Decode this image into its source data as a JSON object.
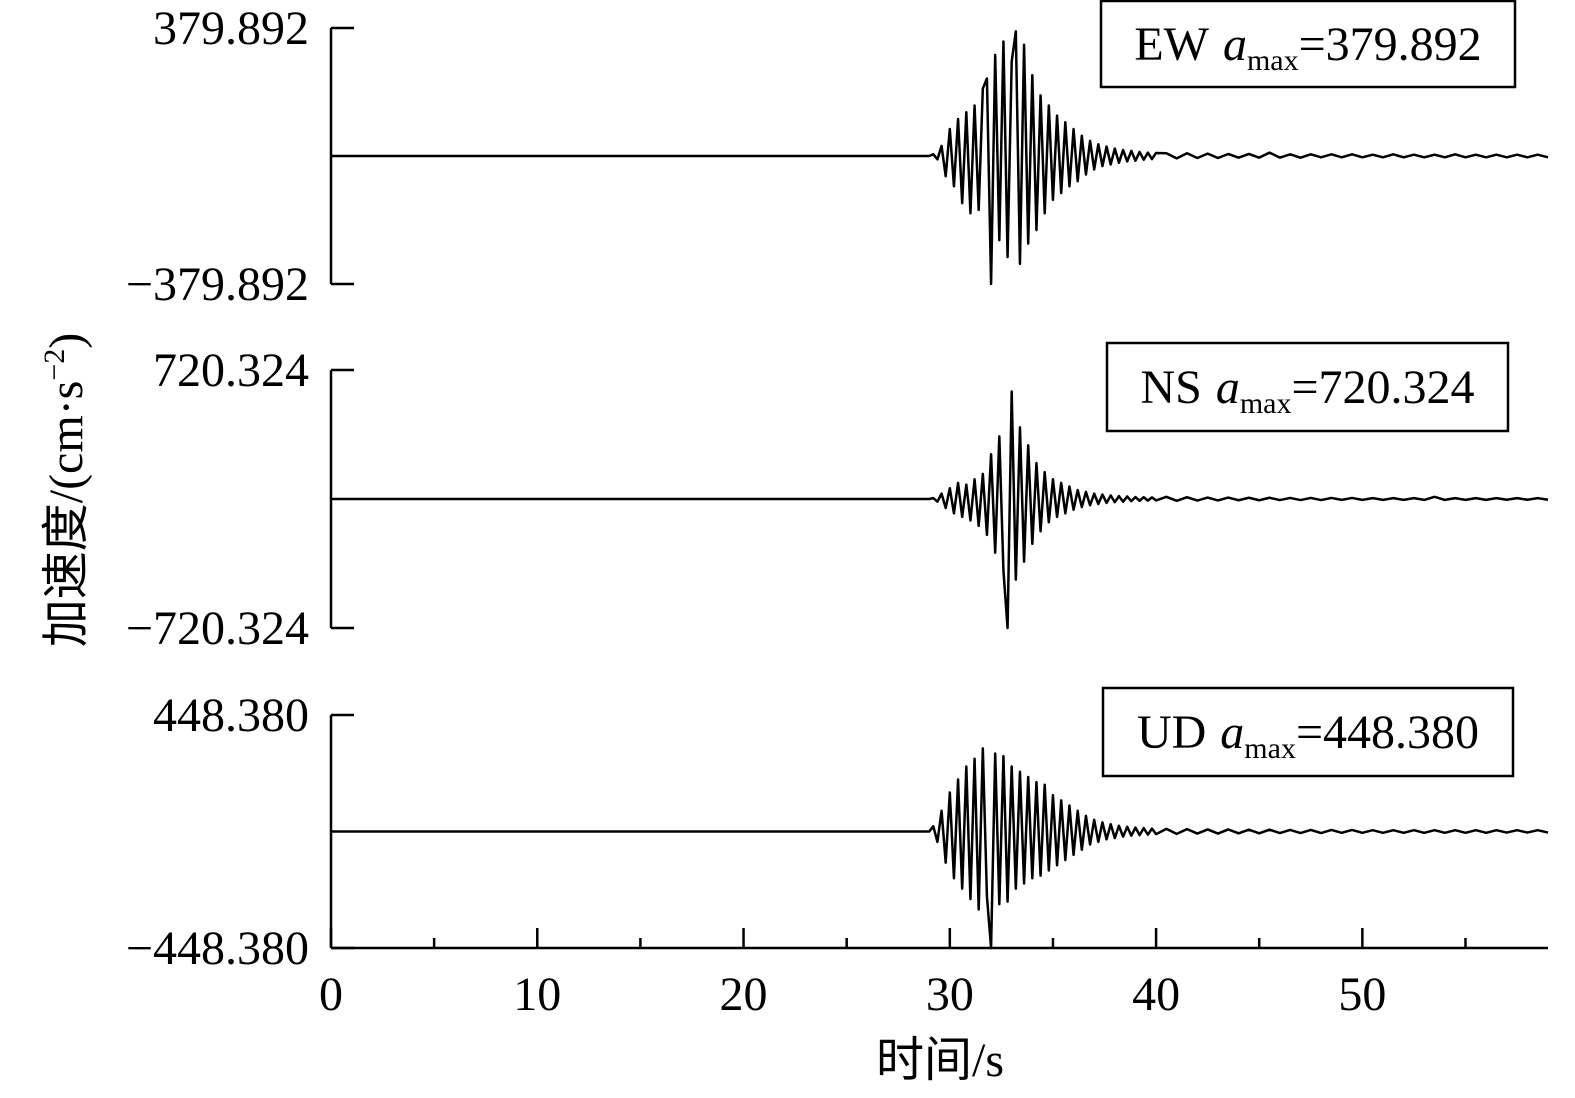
{
  "chart_data": [
    {
      "type": "line",
      "annotation_parts": [
        "EW",
        "a",
        "max",
        "=379.892"
      ],
      "x": [
        0,
        29,
        29.2,
        29.4,
        29.6,
        29.8,
        30,
        30.2,
        30.4,
        30.6,
        30.8,
        31,
        31.2,
        31.4,
        31.6,
        31.8,
        32,
        32.2,
        32.4,
        32.6,
        32.8,
        33,
        33.2,
        33.4,
        33.6,
        33.8,
        34,
        34.2,
        34.4,
        34.6,
        34.8,
        35,
        35.2,
        35.4,
        35.6,
        35.8,
        36,
        36.2,
        36.4,
        36.6,
        36.8,
        37,
        37.2,
        37.4,
        37.6,
        37.8,
        38,
        38.2,
        38.4,
        38.6,
        38.8,
        39,
        39.2,
        39.4,
        39.6,
        39.8,
        40,
        40.5,
        41,
        41.5,
        42,
        42.5,
        43,
        43.5,
        44,
        44.5,
        45,
        45.5,
        46,
        46.5,
        47,
        47.5,
        48,
        48.5,
        49,
        49.5,
        50,
        50.5,
        51,
        51.5,
        52,
        52.5,
        53,
        53.5,
        54,
        54.5,
        55,
        55.5,
        56,
        56.5,
        57,
        57.5,
        58,
        58.5,
        59
      ],
      "series": [
        {
          "color": "#000000",
          "values": [
            0,
            0,
            5,
            -10,
            30,
            -60,
            80,
            -90,
            110,
            -140,
            130,
            -170,
            150,
            -160,
            200,
            230,
            -379.892,
            300,
            -250,
            340,
            -300,
            280,
            370,
            -320,
            330,
            -260,
            240,
            -220,
            180,
            -170,
            150,
            -130,
            120,
            -110,
            100,
            -90,
            80,
            -75,
            60,
            -55,
            45,
            -40,
            35,
            -30,
            28,
            -25,
            22,
            -20,
            18,
            -16,
            15,
            -14,
            12,
            -11,
            10,
            -9,
            9,
            8,
            -7,
            8,
            -6,
            7,
            -6,
            6,
            -5,
            6,
            -5,
            10,
            -5,
            5,
            -5,
            5,
            -4,
            5,
            -4,
            5,
            -4,
            4,
            -4,
            5,
            -4,
            4,
            -4,
            4,
            -4,
            5,
            -4,
            4,
            -4,
            4,
            -4,
            4,
            -4,
            4,
            -4
          ]
        }
      ],
      "xlim": [
        0,
        59
      ],
      "ylim": [
        -379.892,
        379.892
      ],
      "yticks": [
        {
          "value": -379.892,
          "label": "−379.892"
        },
        379.892
      ]
    },
    {
      "type": "line",
      "annotation_parts": [
        "NS",
        "a",
        "max",
        "=720.324"
      ],
      "ylabel_parts": [
        "加速度/(cm·s",
        "−2",
        ")"
      ],
      "x": [
        0,
        29,
        29.2,
        29.4,
        29.6,
        29.8,
        30,
        30.2,
        30.4,
        30.6,
        30.8,
        31,
        31.2,
        31.4,
        31.6,
        31.8,
        32,
        32.2,
        32.4,
        32.6,
        32.8,
        33,
        33.2,
        33.4,
        33.6,
        33.8,
        34,
        34.2,
        34.4,
        34.6,
        34.8,
        35,
        35.2,
        35.4,
        35.6,
        35.8,
        36,
        36.2,
        36.4,
        36.6,
        36.8,
        37,
        37.2,
        37.4,
        37.6,
        37.8,
        38,
        38.2,
        38.4,
        38.6,
        38.8,
        39,
        39.2,
        39.4,
        39.6,
        39.8,
        40,
        40.5,
        41,
        41.5,
        42,
        42.5,
        43,
        43.5,
        44,
        44.5,
        45,
        45.5,
        46,
        46.5,
        47,
        47.5,
        48,
        48.5,
        49,
        49.5,
        50,
        50.5,
        51,
        51.5,
        52,
        52.5,
        53,
        53.5,
        54,
        54.5,
        55,
        55.5,
        56,
        56.5,
        57,
        57.5,
        58,
        58.5,
        59
      ],
      "series": [
        {
          "color": "#000000",
          "values": [
            0,
            0,
            5,
            -15,
            30,
            -50,
            60,
            -80,
            90,
            -100,
            80,
            -120,
            110,
            -150,
            140,
            -200,
            250,
            -300,
            350,
            -400,
            -720.324,
            600,
            -450,
            400,
            -350,
            300,
            -250,
            200,
            -180,
            150,
            -130,
            110,
            -100,
            90,
            -80,
            70,
            -60,
            50,
            -45,
            40,
            -35,
            30,
            -28,
            25,
            -22,
            20,
            -18,
            16,
            -15,
            14,
            -12,
            11,
            -10,
            10,
            -9,
            9,
            -8,
            12,
            -10,
            10,
            -9,
            8,
            -8,
            8,
            -7,
            7,
            -7,
            7,
            -6,
            6,
            -6,
            6,
            -6,
            6,
            -5,
            6,
            -5,
            5,
            -5,
            5,
            -5,
            5,
            -5,
            12,
            -5,
            5,
            -5,
            5,
            -5,
            5,
            -4,
            5,
            -4,
            5,
            -4
          ]
        }
      ],
      "xlim": [
        0,
        59
      ],
      "ylim": [
        -720.324,
        720.324
      ],
      "yticks": [
        {
          "value": -720.324,
          "label": "−720.324"
        },
        720.324
      ]
    },
    {
      "type": "line",
      "annotation_parts": [
        "UD",
        "a",
        "max",
        "=448.380"
      ],
      "xlabel": "时间/s",
      "x": [
        0,
        29,
        29.2,
        29.4,
        29.6,
        29.8,
        30,
        30.2,
        30.4,
        30.6,
        30.8,
        31,
        31.2,
        31.4,
        31.6,
        31.8,
        32,
        32.2,
        32.4,
        32.6,
        32.8,
        33,
        33.2,
        33.4,
        33.6,
        33.8,
        34,
        34.2,
        34.4,
        34.6,
        34.8,
        35,
        35.2,
        35.4,
        35.6,
        35.8,
        36,
        36.2,
        36.4,
        36.6,
        36.8,
        37,
        37.2,
        37.4,
        37.6,
        37.8,
        38,
        38.2,
        38.4,
        38.6,
        38.8,
        39,
        39.2,
        39.4,
        39.6,
        39.8,
        40,
        40.5,
        41,
        41.5,
        42,
        42.5,
        43,
        43.5,
        44,
        44.5,
        45,
        45.5,
        46,
        46.5,
        47,
        47.5,
        48,
        48.5,
        49,
        49.5,
        50,
        50.5,
        51,
        51.5,
        52,
        52.5,
        53,
        53.5,
        54,
        54.5,
        55,
        55.5,
        56,
        56.5,
        57,
        57.5,
        58,
        58.5,
        59
      ],
      "series": [
        {
          "color": "#000000",
          "values": [
            0,
            0,
            20,
            -40,
            80,
            -120,
            150,
            -180,
            200,
            -220,
            250,
            -260,
            280,
            -300,
            320,
            -250,
            -448.38,
            300,
            -280,
            290,
            -270,
            250,
            -220,
            230,
            -200,
            210,
            -180,
            190,
            -170,
            180,
            -150,
            140,
            -130,
            120,
            -110,
            100,
            -90,
            80,
            -70,
            60,
            -50,
            45,
            -40,
            35,
            -30,
            28,
            -25,
            22,
            -20,
            18,
            -16,
            15,
            -14,
            13,
            -12,
            11,
            -10,
            10,
            -9,
            9,
            -8,
            8,
            -8,
            8,
            -7,
            7,
            -7,
            7,
            -6,
            6,
            -6,
            6,
            -6,
            6,
            -5,
            6,
            -5,
            5,
            -5,
            5,
            -5,
            5,
            -5,
            5,
            -5,
            5,
            -5,
            5,
            -5,
            5,
            -4,
            5,
            -4,
            5,
            -4
          ]
        }
      ],
      "xlim": [
        0,
        59
      ],
      "ylim": [
        -448.38,
        448.38
      ],
      "yticks": [
        {
          "value": -448.38,
          "label": "−448.380"
        },
        {
          "value": 448.38,
          "label": "448.380"
        }
      ],
      "xticks": [
        0,
        10,
        20,
        30,
        40,
        50
      ],
      "xminor_ticks": [
        5,
        15,
        25,
        35,
        45,
        55
      ]
    }
  ]
}
